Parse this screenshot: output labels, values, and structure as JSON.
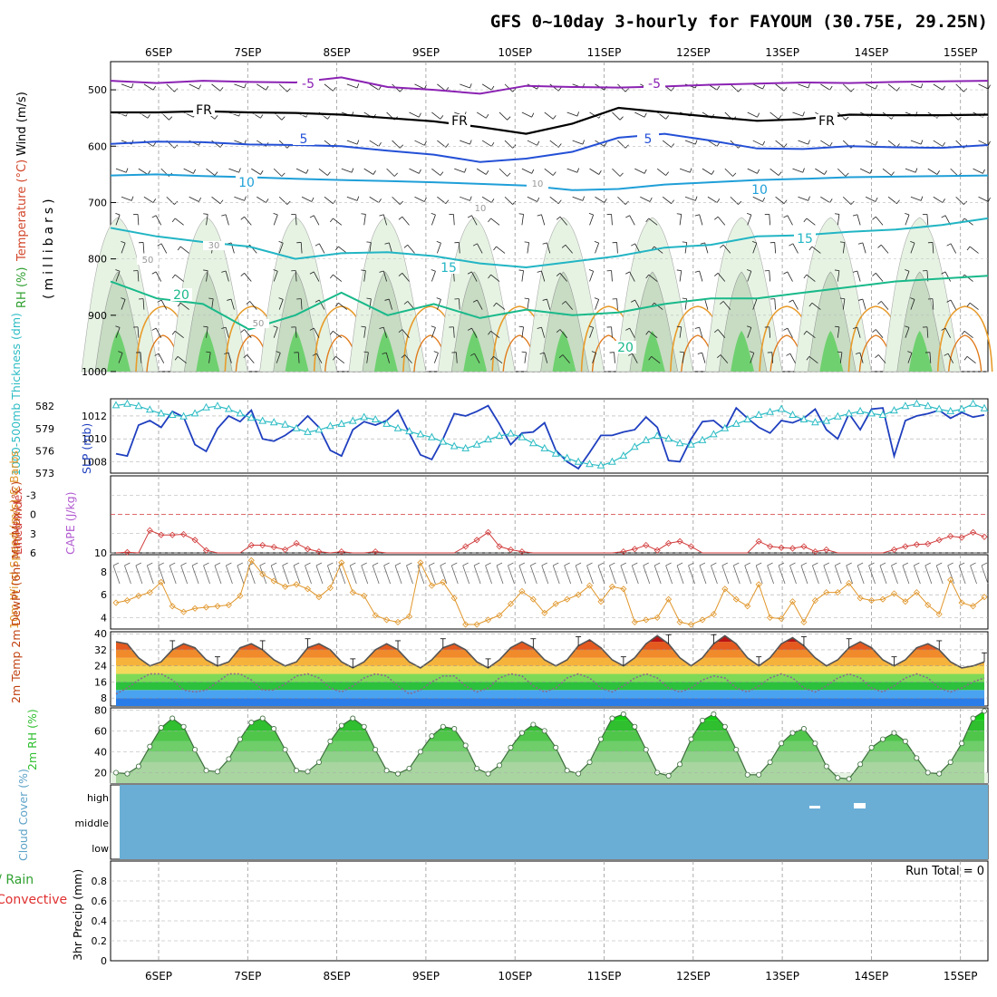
{
  "title": "GFS 0~10day 3-hourly for FAYOUM (30.75E, 29.25N)",
  "dates": [
    "6SEP",
    "7SEP",
    "8SEP",
    "9SEP",
    "10SEP",
    "11SEP",
    "12SEP",
    "13SEP",
    "14SEP",
    "15SEP"
  ],
  "colors": {
    "slp": "#1f3fbf",
    "thick": "#2cbcc4",
    "li": "#d23a3a",
    "wind": "#e0962a",
    "rh_green": "#2fbf2f",
    "cloud": "#6aaed6",
    "rain_total": "#2fa02f",
    "rain_conv": "#e03030",
    "temp_line": "#555555",
    "dew_line": "#8a6a8a"
  },
  "chart_data": [
    {
      "type": "heatmap",
      "panel": "upper-air",
      "ylabel": "(millibars)",
      "ylabel_parts": [
        "Wind (m/s)",
        "Temperature (°C)",
        "RH (%)"
      ],
      "yticks": [
        500,
        600,
        700,
        800,
        900,
        1000
      ],
      "ylim": [
        450,
        1000
      ],
      "contours": [
        {
          "label": "-5",
          "color": "#8b22b3",
          "p": [
            484,
            488,
            484,
            486,
            487,
            478,
            495,
            500,
            507,
            493,
            495,
            496,
            494,
            491,
            489,
            487,
            488,
            486,
            485,
            484
          ]
        },
        {
          "label": "FR",
          "color": "#000000",
          "p": [
            540,
            540,
            538,
            540,
            541,
            544,
            550,
            556,
            566,
            578,
            560,
            532,
            540,
            548,
            555,
            552,
            544,
            545,
            545,
            544
          ]
        },
        {
          "label": "5",
          "color": "#2450d6",
          "p": [
            596,
            592,
            593,
            597,
            598,
            600,
            608,
            615,
            628,
            622,
            610,
            585,
            578,
            590,
            604,
            605,
            600,
            602,
            603,
            598
          ]
        },
        {
          "label": "10",
          "color": "#1f9fd8",
          "p": [
            652,
            650,
            653,
            655,
            658,
            660,
            662,
            664,
            667,
            670,
            678,
            676,
            668,
            664,
            660,
            658,
            655,
            654,
            653,
            652
          ]
        },
        {
          "label": "15",
          "color": "#22b5c4",
          "p": [
            745,
            760,
            770,
            778,
            800,
            790,
            788,
            795,
            808,
            815,
            805,
            795,
            780,
            775,
            760,
            758,
            752,
            748,
            740,
            728
          ]
        },
        {
          "label": "20",
          "color": "#19b98a",
          "p": [
            840,
            870,
            880,
            925,
            900,
            860,
            900,
            880,
            905,
            890,
            900,
            895,
            880,
            870,
            870,
            860,
            850,
            840,
            835,
            830
          ]
        }
      ],
      "contour_labels": [
        "-5",
        "FR",
        "5",
        "10",
        "15",
        "20",
        "10",
        "30",
        "50"
      ]
    },
    {
      "type": "line",
      "panel": "slp-thickness",
      "ylabel": "SLP (mb)",
      "ylabel2": "1000-500mb Thickness (dm)",
      "y1ticks": [
        1008,
        1010,
        1012
      ],
      "y1lim": [
        1007,
        1013.5
      ],
      "y2ticks": [
        573,
        576,
        579,
        582
      ],
      "y2lim": [
        573,
        583
      ],
      "series": [
        {
          "name": "SLP (mb)",
          "values": [
            1008.7,
            1008.5,
            1011.2,
            1011.6,
            1011.0,
            1012.4,
            1011.9,
            1009.5,
            1008.9,
            1010.9,
            1012.0,
            1011.5,
            1012.5,
            1010.0,
            1009.8,
            1010.3,
            1011.0,
            1012.0,
            1011.0,
            1009.0,
            1008.5,
            1010.8,
            1011.5,
            1011.2,
            1011.6,
            1012.5,
            1010.5,
            1008.6,
            1008.2,
            1010.0,
            1012.2,
            1012.0,
            1012.4,
            1012.9,
            1011.3,
            1009.5,
            1010.5,
            1010.6,
            1011.4,
            1009.0,
            1008.0,
            1007.4,
            1008.8,
            1010.3,
            1010.3,
            1010.6,
            1010.8,
            1011.9,
            1011.0,
            1008.1,
            1008.0,
            1010.0,
            1011.5,
            1011.6,
            1010.8,
            1012.7,
            1011.8,
            1011.0,
            1010.5,
            1011.6,
            1011.4,
            1011.8,
            1012.6,
            1010.8,
            1010.0,
            1012.2,
            1010.8,
            1012.6,
            1012.7,
            1008.5,
            1011.6,
            1012.0,
            1012.2,
            1012.5,
            1011.8,
            1012.3,
            1011.9,
            1012.1
          ]
        },
        {
          "name": "1000-500mb Thickness (dm)",
          "values": [
            582.1,
            582.3,
            582.0,
            581.5,
            581.0,
            580.8,
            580.6,
            581.0,
            581.8,
            582.0,
            581.6,
            581.0,
            580.4,
            580.0,
            579.8,
            579.5,
            579.0,
            578.5,
            578.8,
            579.3,
            579.6,
            580.0,
            580.5,
            580.2,
            579.6,
            579.0,
            578.6,
            578.2,
            577.8,
            577.2,
            576.6,
            576.3,
            576.8,
            577.5,
            578.0,
            578.3,
            577.8,
            577.0,
            576.3,
            575.6,
            575.0,
            574.5,
            574.2,
            574.0,
            574.5,
            575.3,
            576.5,
            577.4,
            578.0,
            577.6,
            577.0,
            576.8,
            577.4,
            578.2,
            579.0,
            579.6,
            580.2,
            580.8,
            581.2,
            581.6,
            580.8,
            580.2,
            579.8,
            580.0,
            580.6,
            581.0,
            581.3,
            581.0,
            580.8,
            581.4,
            582.0,
            582.3,
            582.0,
            581.6,
            581.3,
            581.6,
            582.3,
            581.7
          ]
        }
      ]
    },
    {
      "type": "line",
      "panel": "lifted-index-cape",
      "ylabel": "Lifted Index",
      "ylabel2": "CAPE (J/kg)",
      "yticks": [
        -3,
        0,
        3,
        6
      ],
      "y2ticks": [
        10
      ],
      "ylim": [
        -6,
        6
      ],
      "series": [
        {
          "name": "Lifted Index",
          "values": [
            6,
            5.9,
            6,
            2.5,
            3.2,
            3.2,
            3.1,
            4.0,
            5.6,
            6,
            6,
            6,
            4.8,
            4.8,
            5.1,
            5.5,
            4.5,
            5.4,
            5.8,
            6,
            5.8,
            6,
            6,
            5.8,
            6,
            6,
            6,
            6,
            6,
            6,
            6,
            5,
            4,
            2.8,
            5,
            5.5,
            5.8,
            6,
            6,
            6,
            6,
            6,
            6,
            6,
            6,
            5.8,
            5.4,
            4.8,
            5.6,
            4.5,
            4.2,
            5,
            6,
            6,
            6,
            6,
            6,
            4.2,
            5,
            5.2,
            5.3,
            5,
            5.8,
            5.5,
            6,
            6,
            6,
            6,
            6,
            5.5,
            5,
            4.7,
            4.6,
            4,
            3.4,
            3.6,
            2.8,
            3.5
          ]
        }
      ]
    },
    {
      "type": "line",
      "panel": "10m-wind",
      "ylabel": "10m Wind Speed (m/s) & Barbs",
      "yticks": [
        4,
        6,
        8
      ],
      "ylim": [
        3,
        9.5
      ],
      "series": [
        {
          "name": "10m Wind Speed (m/s)",
          "values": [
            5.3,
            5.5,
            5.9,
            6.2,
            7.1,
            5.0,
            4.5,
            4.8,
            4.9,
            5.0,
            5.1,
            5.9,
            9.0,
            7.8,
            7.2,
            6.7,
            6.9,
            6.5,
            5.8,
            6.6,
            8.8,
            6.2,
            5.9,
            4.2,
            3.8,
            3.6,
            4.1,
            8.8,
            6.8,
            7.1,
            5.7,
            3.4,
            3.4,
            3.8,
            4.2,
            5.2,
            6.3,
            5.6,
            4.4,
            5.2,
            5.6,
            6.0,
            6.8,
            5.4,
            6.7,
            6.5,
            3.6,
            3.8,
            4.0,
            5.6,
            3.6,
            3.4,
            3.8,
            4.3,
            6.5,
            5.6,
            5.0,
            6.9,
            4.0,
            3.9,
            5.4,
            3.6,
            5.5,
            6.2,
            6.2,
            7.0,
            5.7,
            5.5,
            5.6,
            6.1,
            5.4,
            6.2,
            5.1,
            4.3,
            7.3,
            5.3,
            5.0,
            5.8
          ]
        }
      ]
    },
    {
      "type": "area",
      "panel": "2m-temp",
      "ylabel": "2m Temp 2m DewPt (6hr Min/Max) (°C)",
      "yticks": [
        8,
        16,
        24,
        32,
        40
      ],
      "ylim": [
        4,
        41
      ],
      "series": [
        {
          "name": "2m Temp",
          "values": [
            36.0,
            35.0,
            28.0,
            24.0,
            26.0,
            32.0,
            35.0,
            33.0,
            27.0,
            24.0,
            26.0,
            33.0,
            35.0,
            32.0,
            27.0,
            24.0,
            26.0,
            33.0,
            35.0,
            32.0,
            26.0,
            23.0,
            26.0,
            32.0,
            35.0,
            32.0,
            26.0,
            23.0,
            27.0,
            33.0,
            35.0,
            32.0,
            26.0,
            23.0,
            27.0,
            33.0,
            36.0,
            33.0,
            27.0,
            24.0,
            27.0,
            34.0,
            37.0,
            33.0,
            27.0,
            24.0,
            28.0,
            35.0,
            39.0,
            35.0,
            28.0,
            24.0,
            28.0,
            35.0,
            39.0,
            35.0,
            28.0,
            24.0,
            28.0,
            35.0,
            38.0,
            34.0,
            28.0,
            24.0,
            27.0,
            33.0,
            36.0,
            33.0,
            27.0,
            24.0,
            27.0,
            33.0,
            35.0,
            32.0,
            26.0,
            23.0,
            24.0,
            26.0
          ]
        },
        {
          "name": "2m DewPt",
          "values": [
            10.0,
            13.0,
            17.0,
            20.0,
            20.0,
            17.0,
            12.0,
            11.0,
            12.0,
            16.0,
            20.0,
            20.0,
            17.0,
            12.0,
            12.0,
            15.0,
            19.0,
            20.0,
            18.0,
            13.0,
            11.0,
            14.0,
            18.0,
            20.0,
            19.0,
            14.0,
            10.0,
            12.0,
            16.0,
            19.0,
            19.0,
            14.0,
            11.0,
            13.0,
            18.0,
            20.0,
            19.0,
            14.0,
            11.0,
            13.0,
            18.0,
            20.0,
            18.0,
            13.0,
            11.0,
            14.0,
            18.0,
            20.0,
            18.0,
            13.0,
            11.0,
            13.0,
            17.0,
            19.0,
            18.0,
            13.0,
            11.0,
            14.0,
            18.0,
            20.0,
            18.0,
            13.0,
            11.0,
            14.0,
            18.0,
            20.0,
            18.0,
            13.0,
            11.0,
            14.0,
            18.0,
            20.0,
            18.0,
            13.0,
            11.0,
            13.0,
            16.0,
            18.0
          ]
        }
      ]
    },
    {
      "type": "area",
      "panel": "2m-rh",
      "ylabel": "2m RH (%)",
      "yticks": [
        20,
        40,
        60,
        80
      ],
      "ylim": [
        10,
        82
      ],
      "series": [
        {
          "name": "2m RH",
          "values": [
            20,
            19,
            26,
            45,
            63,
            72,
            64,
            42,
            22,
            21,
            33,
            52,
            68,
            72,
            62,
            42,
            22,
            21,
            30,
            50,
            65,
            72,
            64,
            42,
            22,
            19,
            24,
            40,
            55,
            64,
            62,
            46,
            24,
            19,
            27,
            44,
            58,
            66,
            60,
            44,
            22,
            19,
            30,
            52,
            72,
            76,
            64,
            42,
            20,
            17,
            28,
            52,
            70,
            76,
            64,
            42,
            18,
            18,
            30,
            48,
            58,
            62,
            48,
            26,
            15,
            14,
            28,
            44,
            52,
            58,
            50,
            34,
            20,
            19,
            30,
            48,
            72,
            79
          ]
        }
      ]
    },
    {
      "type": "bar",
      "panel": "cloud-cover",
      "ylabel": "Cloud Cover (%)",
      "levels": [
        "high",
        "middle",
        "low"
      ],
      "coverage": {
        "high": 100,
        "middle": 100,
        "low": 100
      }
    },
    {
      "type": "bar",
      "panel": "precip",
      "ylabel": "3hr Precip (mm)",
      "ylabel2": "Total / Rain Convective",
      "yticks": [
        0,
        0.2,
        0.4,
        0.6,
        0.8
      ],
      "ylim": [
        0,
        1.0
      ],
      "run_total_label": "Run Total = 0",
      "series": [
        {
          "name": "Total / Rain",
          "values": []
        },
        {
          "name": "Convective",
          "values": []
        }
      ]
    }
  ]
}
